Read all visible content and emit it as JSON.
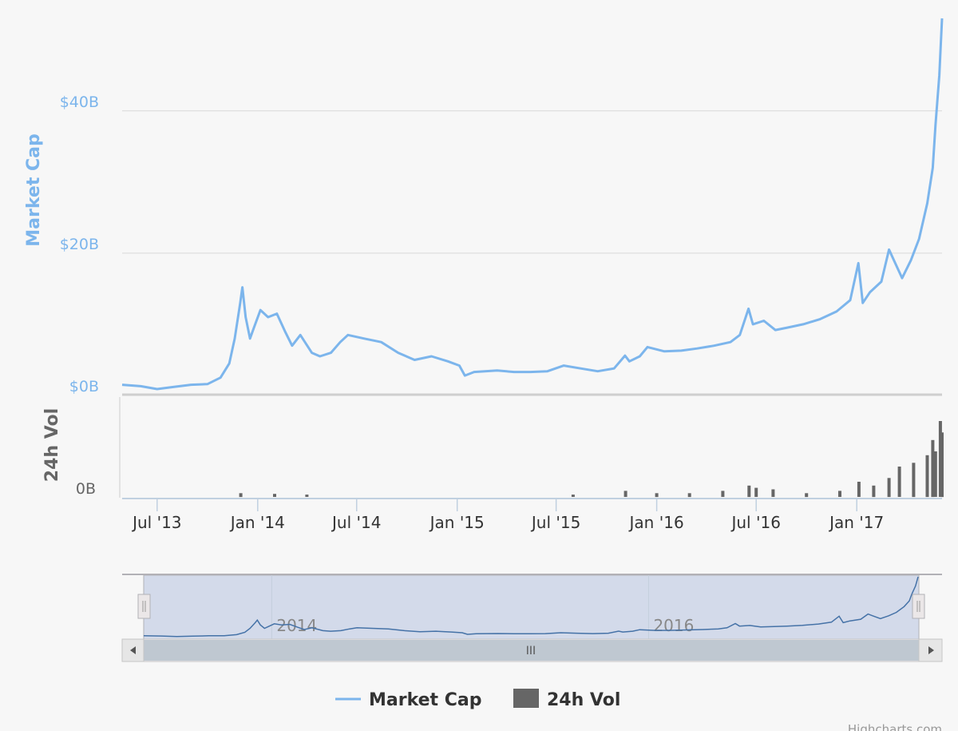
{
  "chart_data": {
    "type": "line",
    "x_axis": {
      "type": "date",
      "tick_labels": [
        "Jul '13",
        "Jan '14",
        "Jul '14",
        "Jan '15",
        "Jul '15",
        "Jan '16",
        "Jul '16",
        "Jan '17"
      ],
      "tick_dates": [
        "2013-07-01",
        "2014-01-01",
        "2014-07-01",
        "2015-01-01",
        "2015-07-01",
        "2016-01-01",
        "2016-07-01",
        "2017-01-01"
      ],
      "range": [
        "2013-04-28",
        "2017-06-06"
      ]
    },
    "y_axes": [
      {
        "title": "Market Cap",
        "tick_labels": [
          "$0B",
          "$20B",
          "$40B"
        ],
        "ticks": [
          0,
          20,
          40
        ],
        "range": [
          0,
          53
        ],
        "unit": "billion USD",
        "grid": true,
        "color": "#7cb5ec"
      },
      {
        "title": "24h Vol",
        "tick_labels": [
          "0B"
        ],
        "ticks": [
          0
        ],
        "range": [
          0,
          5
        ],
        "unit": "billion USD",
        "color": "#666666"
      }
    ],
    "series": [
      {
        "name": "Market Cap",
        "type": "line",
        "color": "#7cb5ec",
        "points": [
          [
            "2013-04-28",
            1.5
          ],
          [
            "2013-06-01",
            1.3
          ],
          [
            "2013-07-01",
            0.9
          ],
          [
            "2013-08-01",
            1.2
          ],
          [
            "2013-09-01",
            1.5
          ],
          [
            "2013-10-01",
            1.6
          ],
          [
            "2013-10-25",
            2.5
          ],
          [
            "2013-11-10",
            4.5
          ],
          [
            "2013-11-20",
            8.0
          ],
          [
            "2013-11-30",
            13.0
          ],
          [
            "2013-12-04",
            15.2
          ],
          [
            "2013-12-10",
            11.0
          ],
          [
            "2013-12-18",
            8.0
          ],
          [
            "2013-12-25",
            9.5
          ],
          [
            "2014-01-06",
            12.0
          ],
          [
            "2014-01-20",
            11.0
          ],
          [
            "2014-02-05",
            11.5
          ],
          [
            "2014-02-20",
            9.0
          ],
          [
            "2014-03-05",
            7.0
          ],
          [
            "2014-03-20",
            8.5
          ],
          [
            "2014-04-10",
            6.0
          ],
          [
            "2014-04-25",
            5.5
          ],
          [
            "2014-05-15",
            6.0
          ],
          [
            "2014-06-01",
            7.5
          ],
          [
            "2014-06-15",
            8.5
          ],
          [
            "2014-07-15",
            8.0
          ],
          [
            "2014-08-15",
            7.5
          ],
          [
            "2014-09-15",
            6.0
          ],
          [
            "2014-10-15",
            5.0
          ],
          [
            "2014-11-15",
            5.5
          ],
          [
            "2014-12-15",
            4.8
          ],
          [
            "2015-01-05",
            4.2
          ],
          [
            "2015-01-15",
            2.8
          ],
          [
            "2015-02-01",
            3.3
          ],
          [
            "2015-03-15",
            3.5
          ],
          [
            "2015-04-15",
            3.3
          ],
          [
            "2015-05-15",
            3.3
          ],
          [
            "2015-06-15",
            3.4
          ],
          [
            "2015-07-15",
            4.2
          ],
          [
            "2015-08-15",
            3.8
          ],
          [
            "2015-09-15",
            3.4
          ],
          [
            "2015-10-15",
            3.8
          ],
          [
            "2015-11-04",
            5.6
          ],
          [
            "2015-11-12",
            4.8
          ],
          [
            "2015-12-01",
            5.5
          ],
          [
            "2015-12-15",
            6.8
          ],
          [
            "2016-01-15",
            6.2
          ],
          [
            "2016-02-15",
            6.3
          ],
          [
            "2016-03-15",
            6.6
          ],
          [
            "2016-04-15",
            7.0
          ],
          [
            "2016-05-15",
            7.5
          ],
          [
            "2016-06-01",
            8.5
          ],
          [
            "2016-06-17",
            12.2
          ],
          [
            "2016-06-25",
            10.0
          ],
          [
            "2016-07-15",
            10.5
          ],
          [
            "2016-08-05",
            9.2
          ],
          [
            "2016-08-25",
            9.5
          ],
          [
            "2016-09-25",
            10.0
          ],
          [
            "2016-10-25",
            10.7
          ],
          [
            "2016-11-25",
            11.8
          ],
          [
            "2016-12-20",
            13.4
          ],
          [
            "2017-01-04",
            18.6
          ],
          [
            "2017-01-12",
            13.0
          ],
          [
            "2017-01-25",
            14.5
          ],
          [
            "2017-02-15",
            16.0
          ],
          [
            "2017-03-01",
            20.5
          ],
          [
            "2017-03-10",
            19.0
          ],
          [
            "2017-03-25",
            16.5
          ],
          [
            "2017-04-10",
            19.0
          ],
          [
            "2017-04-25",
            22.0
          ],
          [
            "2017-05-10",
            27.0
          ],
          [
            "2017-05-20",
            32.0
          ],
          [
            "2017-05-25",
            38.0
          ],
          [
            "2017-06-01",
            45.0
          ],
          [
            "2017-06-06",
            53.0
          ]
        ]
      },
      {
        "name": "24h Vol",
        "type": "column",
        "color": "#666666",
        "points": [
          [
            "2013-12-01",
            0.05
          ],
          [
            "2014-02-01",
            0.04
          ],
          [
            "2014-04-01",
            0.03
          ],
          [
            "2015-08-01",
            0.03
          ],
          [
            "2015-11-05",
            0.08
          ],
          [
            "2016-01-01",
            0.05
          ],
          [
            "2016-03-01",
            0.05
          ],
          [
            "2016-05-01",
            0.08
          ],
          [
            "2016-06-18",
            0.15
          ],
          [
            "2016-07-01",
            0.12
          ],
          [
            "2016-08-01",
            0.1
          ],
          [
            "2016-10-01",
            0.05
          ],
          [
            "2016-12-01",
            0.08
          ],
          [
            "2017-01-05",
            0.2
          ],
          [
            "2017-02-01",
            0.15
          ],
          [
            "2017-03-01",
            0.25
          ],
          [
            "2017-03-20",
            0.4
          ],
          [
            "2017-04-15",
            0.45
          ],
          [
            "2017-05-10",
            0.55
          ],
          [
            "2017-05-20",
            0.75
          ],
          [
            "2017-05-25",
            0.6
          ],
          [
            "2017-06-03",
            1.0
          ],
          [
            "2017-06-06",
            0.85
          ]
        ]
      }
    ],
    "navigator": {
      "tick_labels": [
        "2014",
        "2016"
      ],
      "tick_dates": [
        "2014-01-01",
        "2016-01-01"
      ],
      "selected_range": [
        "2013-04-28",
        "2017-06-06"
      ],
      "scrollbar_grip": "III"
    },
    "legend": {
      "items": [
        "Market Cap",
        "24h Vol"
      ],
      "position": "bottom-center"
    },
    "credits": "Highcharts.com"
  }
}
